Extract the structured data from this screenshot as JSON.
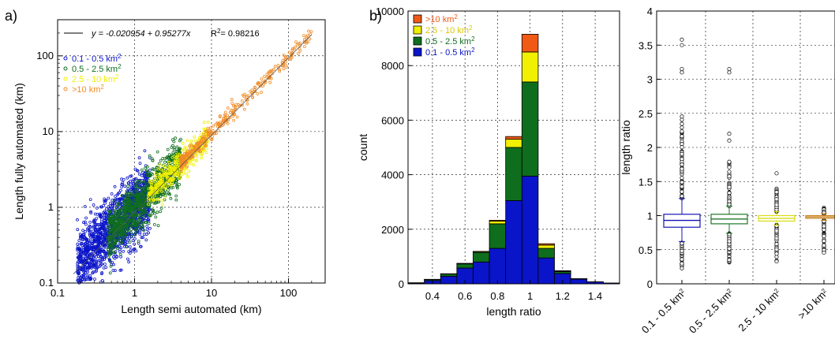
{
  "panels": {
    "a": "a)",
    "b": "b)"
  },
  "chart_data": [
    {
      "type": "scatter",
      "title": "",
      "xlabel": "Length semi automated (km)",
      "ylabel": "Length fully automated (km)",
      "xscale": "log",
      "yscale": "log",
      "xlim": [
        0.1,
        300
      ],
      "ylim": [
        0.1,
        300
      ],
      "xticks": [
        0.1,
        1,
        10,
        100
      ],
      "xtick_labels": [
        "0.1",
        "1",
        "10",
        "100"
      ],
      "yticks": [
        0.1,
        1,
        10,
        100
      ],
      "ytick_labels": [
        "0.1",
        "1",
        "10",
        "100"
      ],
      "grid": true,
      "legend": "top-left",
      "fit_label": "y = -0.020954 + 0.95277x",
      "r2_label": "R",
      "r2_sup": "2",
      "r2_value": "= 0.98216",
      "fit": {
        "intercept": -0.020954,
        "slope": 0.95277,
        "r2": 0.98216
      },
      "series": [
        {
          "name": "0.1 - 0.5 km",
          "sup": "2",
          "color": "#0a14c8",
          "x_range": [
            0.18,
            1.6
          ]
        },
        {
          "name": "0.5 - 2.5 km",
          "sup": "2",
          "color": "#0f6e1e",
          "x_range": [
            0.45,
            4
          ]
        },
        {
          "name": "2.5 - 10 km",
          "sup": "2",
          "color": "#f0f000",
          "x_range": [
            1.5,
            9
          ]
        },
        {
          "name": ">10 km",
          "sup": "2",
          "color": "#f08c28",
          "x_range": [
            4,
            200
          ]
        }
      ]
    },
    {
      "type": "bar",
      "stacked": true,
      "title": "",
      "xlabel": "length ratio",
      "ylabel": "count",
      "xlim": [
        0.25,
        1.55
      ],
      "ylim": [
        0,
        10000
      ],
      "xticks": [
        0.4,
        0.6,
        0.8,
        1.0,
        1.2,
        1.4
      ],
      "xtick_labels": [
        "0.4",
        "0.6",
        "0.8",
        "1",
        "1.2",
        "1.4"
      ],
      "yticks": [
        0,
        2000,
        4000,
        6000,
        8000,
        10000
      ],
      "ytick_labels": [
        "0",
        "2000",
        "4000",
        "6000",
        "8000",
        "10000"
      ],
      "grid": true,
      "legend": "top-left",
      "bin_width": 0.1,
      "x": [
        0.3,
        0.4,
        0.5,
        0.6,
        0.7,
        0.8,
        0.9,
        1.0,
        1.1,
        1.2,
        1.3,
        1.4,
        1.5
      ],
      "series": [
        {
          "name": "0.1 - 0.5 km",
          "sup": "2",
          "color": "#0a14c8",
          "values": [
            30,
            120,
            280,
            580,
            800,
            1300,
            3050,
            3950,
            950,
            380,
            170,
            70,
            30
          ]
        },
        {
          "name": "0.5 - 2.5 km",
          "sup": "2",
          "color": "#0f6e1e",
          "values": [
            10,
            40,
            80,
            150,
            350,
            900,
            1950,
            3450,
            350,
            70,
            20,
            5,
            0
          ]
        },
        {
          "name": "2.5 - 10 km",
          "sup": "2",
          "color": "#f0f000",
          "values": [
            0,
            5,
            10,
            15,
            30,
            100,
            300,
            1100,
            120,
            20,
            0,
            0,
            0
          ]
        },
        {
          "name": ">10 km",
          "sup": "2",
          "color": "#f05a14",
          "values": [
            0,
            0,
            0,
            5,
            10,
            30,
            100,
            650,
            50,
            10,
            0,
            0,
            0
          ]
        }
      ]
    },
    {
      "type": "box",
      "title": "",
      "xlabel": "",
      "ylabel": "length ratio",
      "ylim": [
        0,
        4
      ],
      "yticks": [
        0,
        0.5,
        1,
        1.5,
        2,
        2.5,
        3,
        3.5,
        4
      ],
      "ytick_labels": [
        "0",
        "0.5",
        "1",
        "1.5",
        "2",
        "2.5",
        "3",
        "3.5",
        "4"
      ],
      "grid": true,
      "categories": [
        "0.1 - 0.5 km",
        "0.5 - 2.5 km",
        "2.5 - 10 km",
        ">10 km"
      ],
      "category_sup": "2",
      "boxes": [
        {
          "color": "#1414b4",
          "q1": 0.83,
          "median": 0.93,
          "q3": 1.02,
          "lo": 0.62,
          "hi": 1.25,
          "out_lo": [
            0.2,
            0.6
          ],
          "out_hi": [
            1.25,
            2.6
          ],
          "extra": [
            3.1,
            3.15,
            3.5,
            3.58
          ]
        },
        {
          "color": "#1e7828",
          "q1": 0.88,
          "median": 0.95,
          "q3": 1.02,
          "lo": 0.74,
          "hi": 1.14,
          "out_lo": [
            0.3,
            0.74
          ],
          "out_hi": [
            1.14,
            1.8
          ],
          "extra": [
            2.1,
            2.2,
            3.1,
            3.15
          ]
        },
        {
          "color": "#dcdc14",
          "q1": 0.92,
          "median": 0.96,
          "q3": 1.0,
          "lo": 0.86,
          "hi": 1.06,
          "out_lo": [
            0.3,
            0.86
          ],
          "out_hi": [
            1.06,
            1.4
          ],
          "extra": [
            1.62
          ]
        },
        {
          "color": "#c8821e",
          "q1": 0.96,
          "median": 0.98,
          "q3": 1.0,
          "lo": 0.93,
          "hi": 1.03,
          "out_lo": [
            0.45,
            0.93
          ],
          "out_hi": [
            1.03,
            1.12
          ],
          "extra": []
        }
      ]
    }
  ]
}
